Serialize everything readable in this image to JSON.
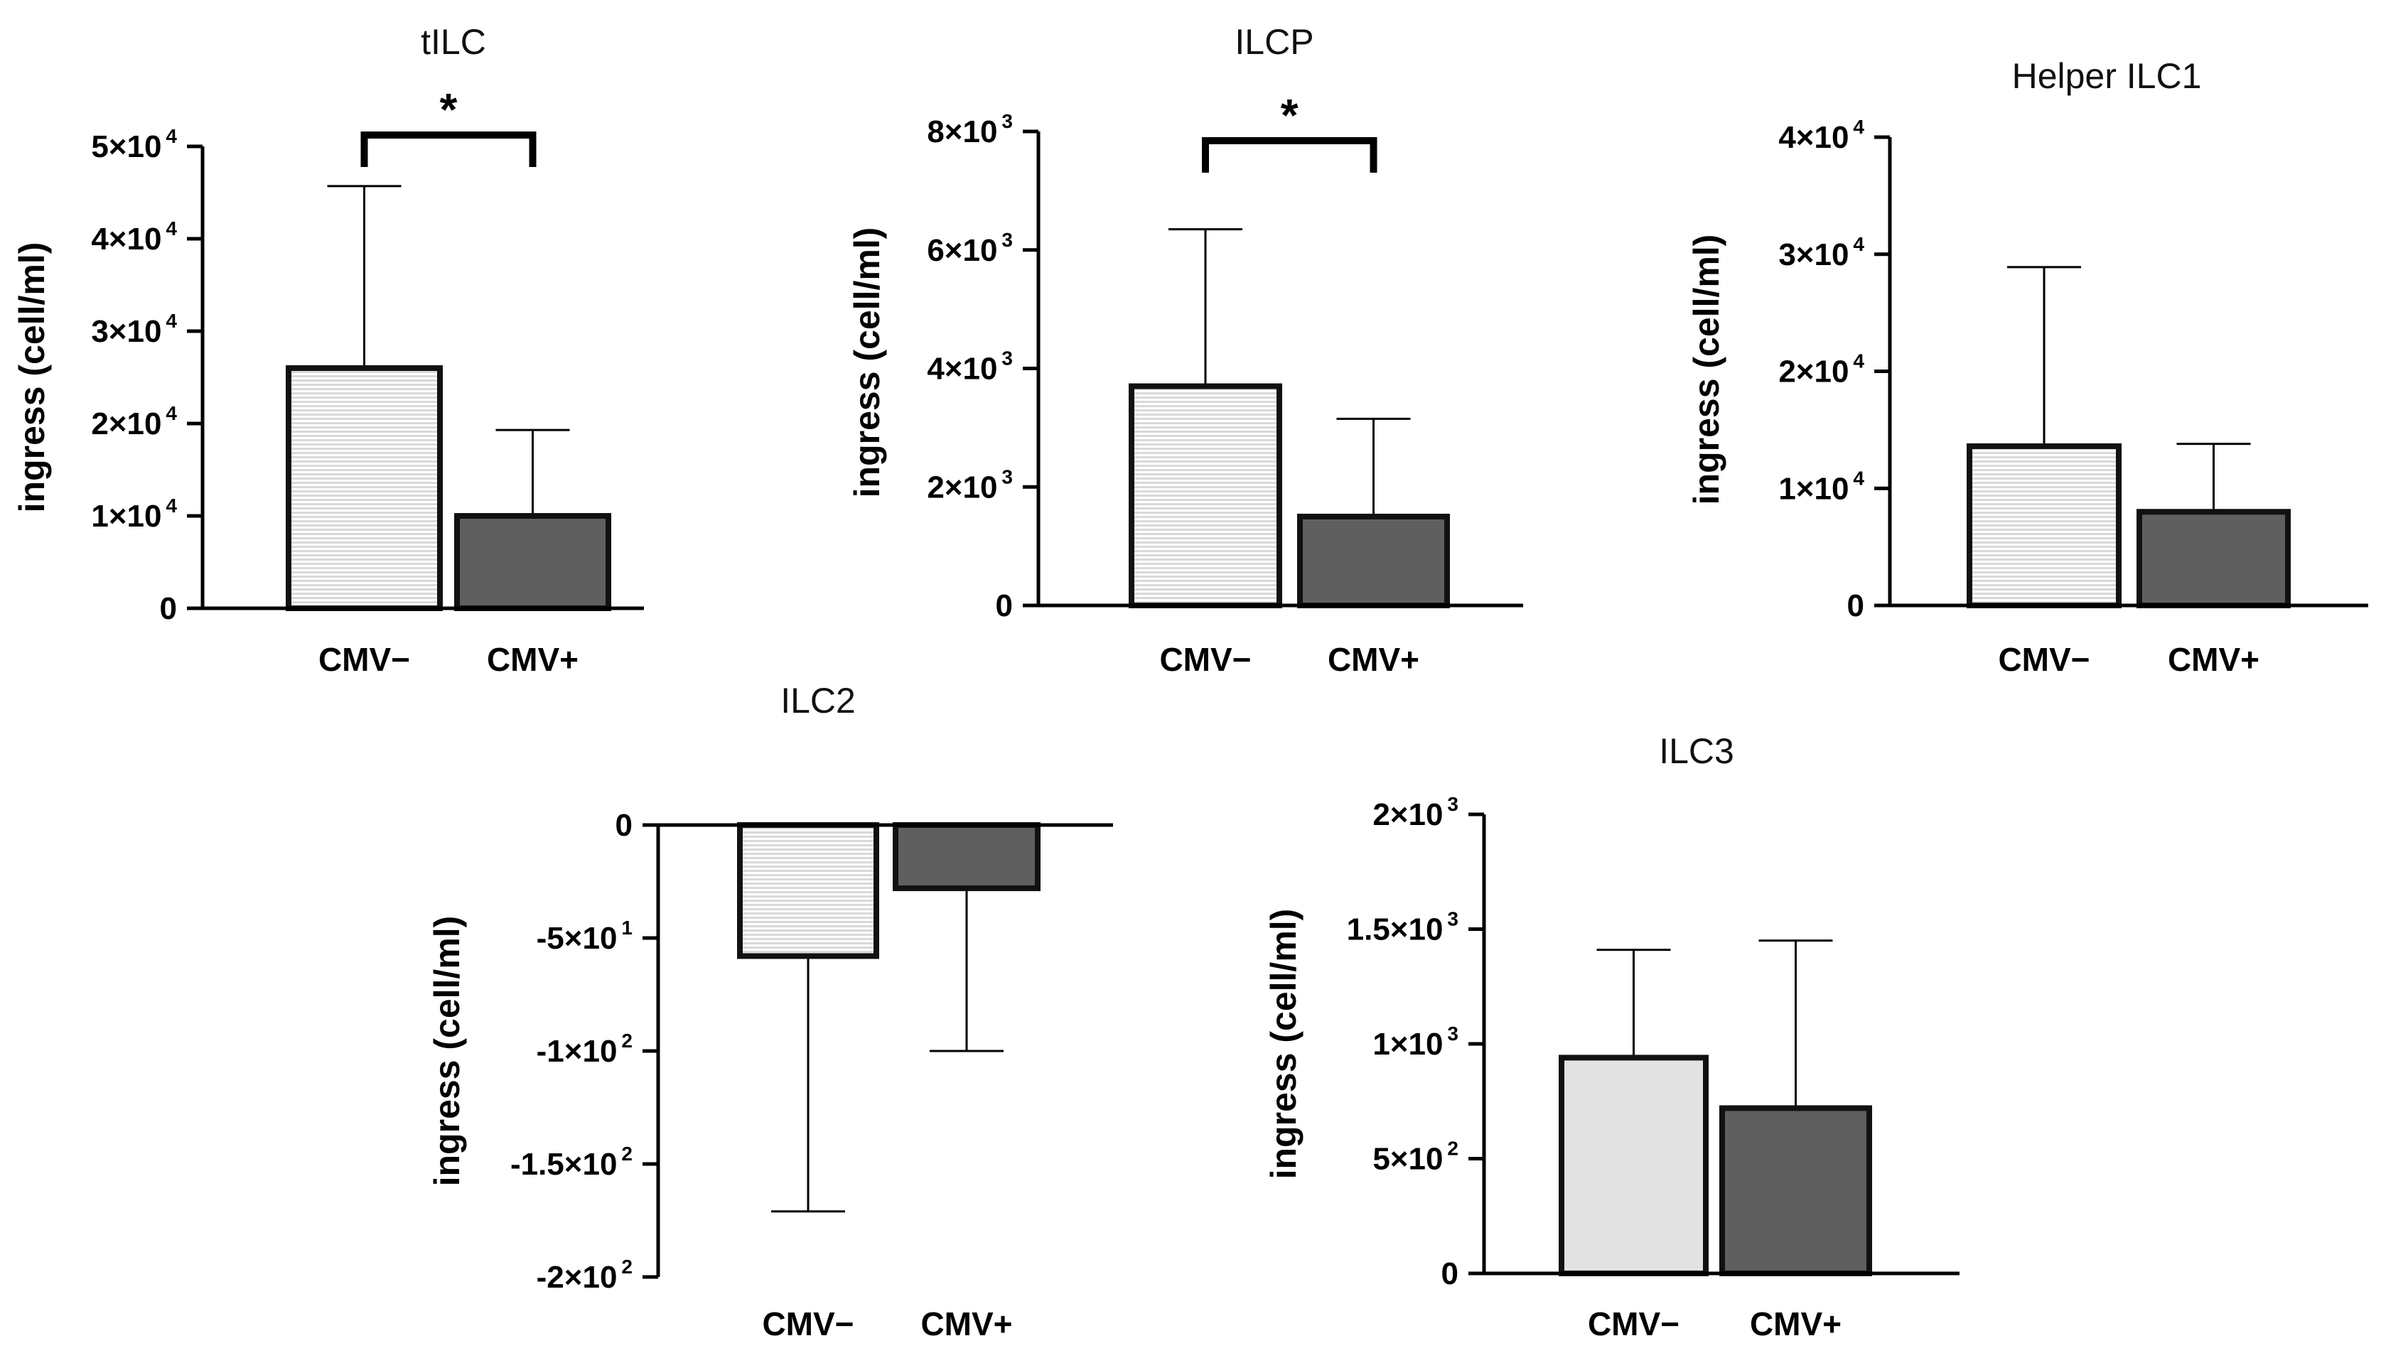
{
  "colors": {
    "axis": "#000000",
    "bar_stroke": "#111111",
    "bar_positive_fill": "#5f5f5f",
    "bar_negative_fill_solid": "#e2e2e2",
    "stripe_light": "#ffffff",
    "stripe_dark": "#d9d9d9"
  },
  "chart_data": [
    {
      "id": "tilc",
      "type": "bar",
      "title": "tILC",
      "ylabel": "ingress (cell/ml)",
      "categories": [
        "CMV−",
        "CMV+"
      ],
      "values": [
        26000,
        10000
      ],
      "errors": [
        19700,
        9300
      ],
      "fills": [
        "striped",
        "dark"
      ],
      "ylim": [
        0,
        50000
      ],
      "yticks": [
        {
          "v": 0,
          "m": "0",
          "e": ""
        },
        {
          "v": 10000,
          "m": "1×10",
          "e": "4"
        },
        {
          "v": 20000,
          "m": "2×10",
          "e": "4"
        },
        {
          "v": 30000,
          "m": "3×10",
          "e": "4"
        },
        {
          "v": 40000,
          "m": "4×10",
          "e": "4"
        },
        {
          "v": 50000,
          "m": "5×10",
          "e": "4"
        }
      ],
      "significance": "*"
    },
    {
      "id": "ilcp",
      "type": "bar",
      "title": "ILCP",
      "ylabel": "ingress (cell/ml)",
      "categories": [
        "CMV−",
        "CMV+"
      ],
      "values": [
        3700,
        1500
      ],
      "errors": [
        2650,
        1650
      ],
      "fills": [
        "striped",
        "dark"
      ],
      "ylim": [
        0,
        8000
      ],
      "yticks": [
        {
          "v": 0,
          "m": "0",
          "e": ""
        },
        {
          "v": 2000,
          "m": "2×10",
          "e": "3"
        },
        {
          "v": 4000,
          "m": "4×10",
          "e": "3"
        },
        {
          "v": 6000,
          "m": "6×10",
          "e": "3"
        },
        {
          "v": 8000,
          "m": "8×10",
          "e": "3"
        }
      ],
      "significance": "*"
    },
    {
      "id": "helper-ilc1",
      "type": "bar",
      "title": "Helper ILC1",
      "ylabel": "ingress (cell/ml)",
      "categories": [
        "CMV−",
        "CMV+"
      ],
      "values": [
        13600,
        8000
      ],
      "errors": [
        15300,
        5800
      ],
      "fills": [
        "striped",
        "dark"
      ],
      "ylim": [
        0,
        40000
      ],
      "yticks": [
        {
          "v": 0,
          "m": "0",
          "e": ""
        },
        {
          "v": 10000,
          "m": "1×10",
          "e": "4"
        },
        {
          "v": 20000,
          "m": "2×10",
          "e": "4"
        },
        {
          "v": 30000,
          "m": "3×10",
          "e": "4"
        },
        {
          "v": 40000,
          "m": "4×10",
          "e": "4"
        }
      ],
      "significance": ""
    },
    {
      "id": "ilc2",
      "type": "bar",
      "title": "ILC2",
      "ylabel": "ingress (cell/ml)",
      "categories": [
        "CMV−",
        "CMV+"
      ],
      "values": [
        -58,
        -28
      ],
      "errors": [
        113,
        72
      ],
      "fills": [
        "striped",
        "dark"
      ],
      "ylim": [
        -200,
        0
      ],
      "yticks": [
        {
          "v": 0,
          "m": "0",
          "e": ""
        },
        {
          "v": -50,
          "m": "-5×10",
          "e": "1"
        },
        {
          "v": -100,
          "m": "-1×10",
          "e": "2"
        },
        {
          "v": -150,
          "m": "-1.5×10",
          "e": "2"
        },
        {
          "v": -200,
          "m": "-2×10",
          "e": "2"
        }
      ],
      "significance": ""
    },
    {
      "id": "ilc3",
      "type": "bar",
      "title": "ILC3",
      "ylabel": "ingress (cell/ml)",
      "categories": [
        "CMV−",
        "CMV+"
      ],
      "values": [
        940,
        720
      ],
      "errors": [
        470,
        730
      ],
      "fills": [
        "light",
        "dark"
      ],
      "ylim": [
        0,
        2000
      ],
      "yticks": [
        {
          "v": 0,
          "m": "0",
          "e": ""
        },
        {
          "v": 500,
          "m": "5×10",
          "e": "2"
        },
        {
          "v": 1000,
          "m": "1×10",
          "e": "3"
        },
        {
          "v": 1500,
          "m": "1.5×10",
          "e": "3"
        },
        {
          "v": 2000,
          "m": "2×10",
          "e": "3"
        }
      ],
      "significance": ""
    }
  ]
}
